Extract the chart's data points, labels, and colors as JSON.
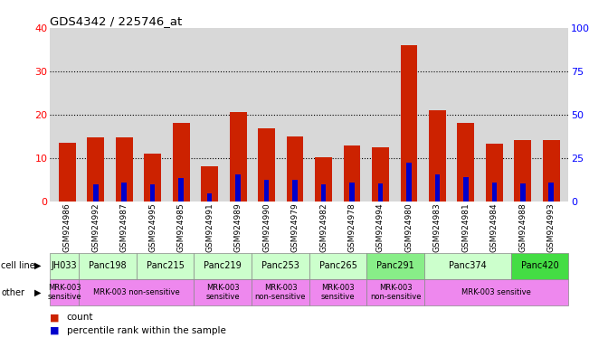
{
  "title": "GDS4342 / 225746_at",
  "gsm_labels": [
    "GSM924986",
    "GSM924992",
    "GSM924987",
    "GSM924995",
    "GSM924985",
    "GSM924991",
    "GSM924989",
    "GSM924990",
    "GSM924979",
    "GSM924982",
    "GSM924978",
    "GSM924994",
    "GSM924980",
    "GSM924983",
    "GSM924981",
    "GSM924984",
    "GSM924988",
    "GSM924993"
  ],
  "count_values": [
    13.5,
    14.8,
    14.7,
    11.0,
    18.0,
    8.0,
    20.5,
    16.8,
    15.0,
    10.2,
    12.8,
    12.5,
    36.0,
    21.0,
    18.0,
    13.2,
    14.2,
    14.2
  ],
  "percentile_values": [
    0,
    10,
    11,
    9.5,
    13.2,
    4.5,
    15.5,
    12.5,
    12.5,
    9.5,
    11,
    10.5,
    22,
    15.5,
    14.0,
    11.0,
    10.5,
    11.0
  ],
  "bar_color": "#cc2200",
  "pct_color": "#0000cc",
  "ylim_left": [
    0,
    40
  ],
  "ylim_right": [
    0,
    100
  ],
  "yticks_left": [
    0,
    10,
    20,
    30,
    40
  ],
  "yticks_right": [
    0,
    25,
    50,
    75,
    100
  ],
  "bg_color": "#d8d8d8",
  "grid_color": "black",
  "legend_count_label": "count",
  "legend_pct_label": "percentile rank within the sample",
  "cl_data": [
    [
      "JH033",
      0,
      1,
      "#ccffcc"
    ],
    [
      "Panc198",
      1,
      2,
      "#ccffcc"
    ],
    [
      "Panc215",
      3,
      2,
      "#ccffcc"
    ],
    [
      "Panc219",
      5,
      2,
      "#ccffcc"
    ],
    [
      "Panc253",
      7,
      2,
      "#ccffcc"
    ],
    [
      "Panc265",
      9,
      2,
      "#ccffcc"
    ],
    [
      "Panc291",
      11,
      2,
      "#88ee88"
    ],
    [
      "Panc374",
      13,
      3,
      "#ccffcc"
    ],
    [
      "Panc420",
      16,
      2,
      "#44dd44"
    ]
  ],
  "other_data": [
    [
      "MRK-003\nsensitive",
      0,
      1,
      "#ee88ee"
    ],
    [
      "MRK-003 non-sensitive",
      1,
      4,
      "#ee88ee"
    ],
    [
      "MRK-003\nsensitive",
      5,
      2,
      "#ee88ee"
    ],
    [
      "MRK-003\nnon-sensitive",
      7,
      2,
      "#ee88ee"
    ],
    [
      "MRK-003\nsensitive",
      9,
      2,
      "#ee88ee"
    ],
    [
      "MRK-003\nnon-sensitive",
      11,
      2,
      "#ee88ee"
    ],
    [
      "MRK-003 sensitive",
      13,
      5,
      "#ee88ee"
    ]
  ]
}
